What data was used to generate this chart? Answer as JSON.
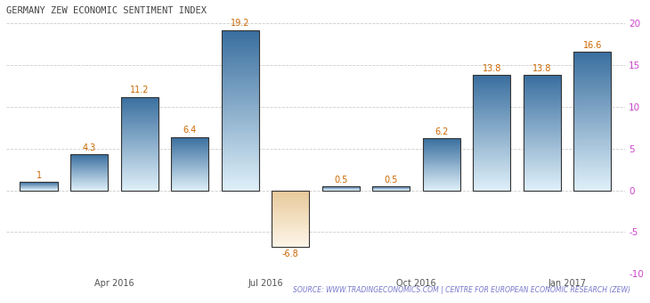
{
  "title": "GERMANY ZEW ECONOMIC SENTIMENT INDEX",
  "values": [
    1.0,
    4.3,
    11.2,
    6.4,
    19.2,
    -6.8,
    0.5,
    0.5,
    6.2,
    13.8,
    13.8,
    16.6
  ],
  "x_positions": [
    0,
    1,
    2,
    3,
    4,
    5,
    6,
    7,
    8,
    9,
    10,
    11
  ],
  "bar_width": 0.75,
  "ylim": [
    -10,
    20
  ],
  "yticks": [
    -10,
    -5,
    0,
    5,
    10,
    15,
    20
  ],
  "xtick_positions": [
    1.5,
    4.5,
    7.5,
    10.5
  ],
  "xtick_labels": [
    "Apr 2016",
    "Jul 2016",
    "Oct 2016",
    "Jan 2017"
  ],
  "pos_bar_top_color": "#3a6f9f",
  "pos_bar_bottom_color": "#ddeef8",
  "neg_bar_top_color": "#e8c99a",
  "neg_bar_bottom_color": "#fdf5e8",
  "bar_edge_color": "#333333",
  "grid_color": "#cccccc",
  "background_color": "#ffffff",
  "title_color": "#444444",
  "title_fontsize": 7.5,
  "label_fontsize": 7,
  "label_color_pos": "#cc6600",
  "label_color_neg": "#3a6f9f",
  "source_text": "SOURCE: WWW.TRADINGECONOMICS.COM | CENTRE FOR EUROPEAN ECONOMIC RESEARCH (ZEW)",
  "source_color": "#7777cc",
  "source_fontsize": 5.5,
  "right_tick_color": "#cc44cc"
}
